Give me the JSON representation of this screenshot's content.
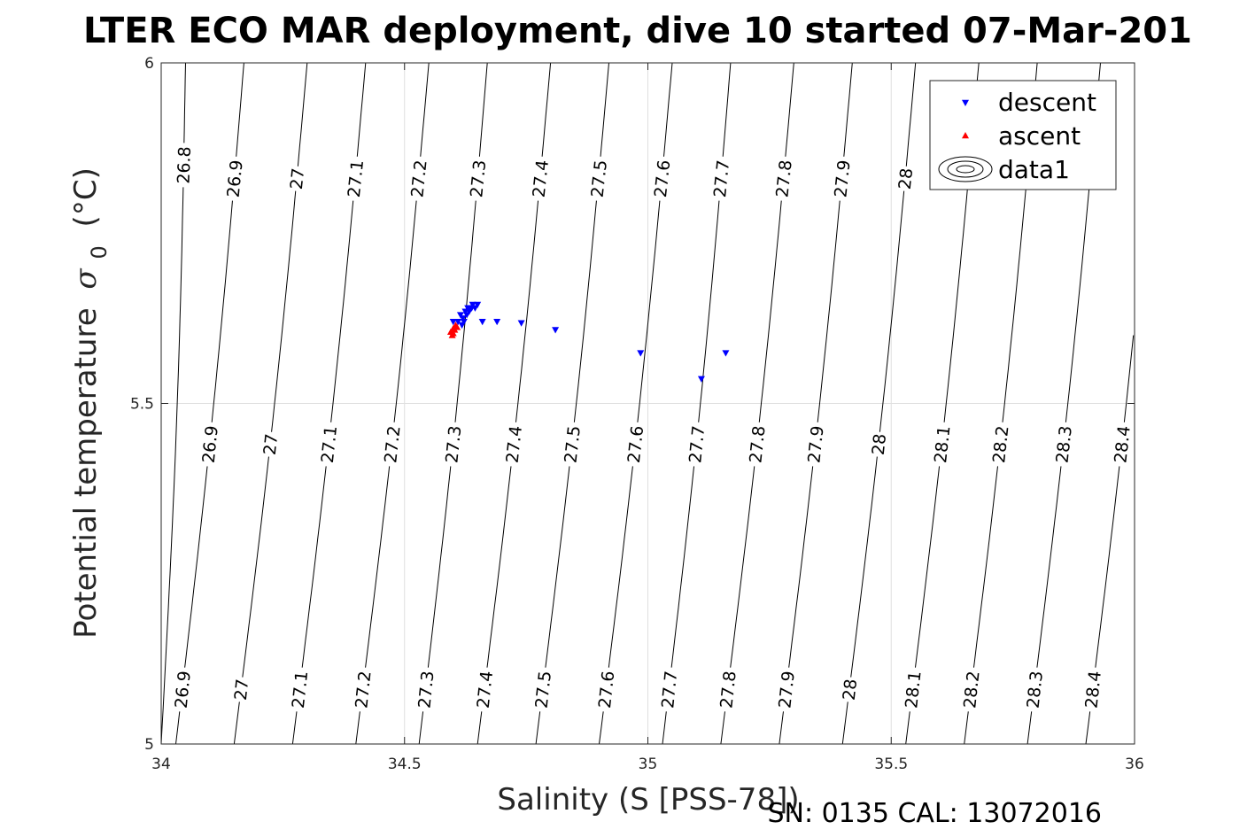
{
  "chart_data": {
    "type": "scatter",
    "title": "LTER ECO MAR deployment, dive 10 started 07-Mar-201",
    "xlabel": "Salinity (S [PSS-78])",
    "ylabel_main": "Potential temperature",
    "ylabel_symbol": "σ",
    "ylabel_subscript": "0",
    "ylabel_unit": "(°C)",
    "xlim": [
      34,
      36
    ],
    "ylim": [
      5,
      6
    ],
    "xticks": [
      "34",
      "34.5",
      "35",
      "35.5",
      "36"
    ],
    "yticks": [
      "5",
      "5.5",
      "6"
    ],
    "grid": true,
    "legend_position": "top-right",
    "legend": [
      "descent",
      "ascent",
      "data1"
    ],
    "footer": "SN: 0135  CAL: 13072016",
    "contours": [
      {
        "level": "26.8",
        "s_top": 34.05,
        "s_bot": 34.0
      },
      {
        "level": "26.9",
        "s_top": 34.17,
        "s_bot": 34.03
      },
      {
        "level": "27",
        "s_top": 34.3,
        "s_bot": 34.15
      },
      {
        "level": "27.1",
        "s_top": 34.42,
        "s_bot": 34.27
      },
      {
        "level": "27.2",
        "s_top": 34.55,
        "s_bot": 34.4
      },
      {
        "level": "27.3",
        "s_top": 34.67,
        "s_bot": 34.53
      },
      {
        "level": "27.4",
        "s_top": 34.8,
        "s_bot": 34.65
      },
      {
        "level": "27.5",
        "s_top": 34.92,
        "s_bot": 34.77
      },
      {
        "level": "27.6",
        "s_top": 35.05,
        "s_bot": 34.9
      },
      {
        "level": "27.7",
        "s_top": 35.17,
        "s_bot": 35.03
      },
      {
        "level": "27.8",
        "s_top": 35.3,
        "s_bot": 35.15
      },
      {
        "level": "27.9",
        "s_top": 35.42,
        "s_bot": 35.27
      },
      {
        "level": "28",
        "s_top": 35.55,
        "s_bot": 35.4
      },
      {
        "level": "28.1",
        "s_top": 35.68,
        "s_bot": 35.53
      },
      {
        "level": "28.2",
        "s_top": 35.8,
        "s_bot": 35.65
      },
      {
        "level": "28.3",
        "s_top": 35.93,
        "s_bot": 35.78
      },
      {
        "level": "28.4",
        "s_top": 36.05,
        "s_bot": 35.9
      }
    ],
    "contour_label_rows": [
      {
        "theta": 5.85,
        "levels": [
          "26.8"
        ]
      },
      {
        "theta": 5.83,
        "levels": [
          "26.9",
          "27",
          "27.1",
          "27.2",
          "27.3",
          "27.4",
          "27.5",
          "27.6",
          "27.7",
          "27.8",
          "27.9",
          "28"
        ]
      },
      {
        "theta": 5.44,
        "levels": [
          "26.9",
          "27",
          "27.1",
          "27.2",
          "27.3",
          "27.4",
          "27.5",
          "27.6",
          "27.7",
          "27.8",
          "27.9",
          "28",
          "28.1",
          "28.2",
          "28.3",
          "28.4"
        ]
      },
      {
        "theta": 5.08,
        "levels": [
          "26.9",
          "27",
          "27.1",
          "27.2",
          "27.3",
          "27.4",
          "27.5",
          "27.6",
          "27.7",
          "27.8",
          "27.9",
          "28",
          "28.1",
          "28.2",
          "28.3",
          "28.4"
        ]
      }
    ],
    "series": [
      {
        "name": "descent",
        "marker": "triangle-down",
        "color": "#0000ff",
        "points": [
          [
            34.6,
            5.62
          ],
          [
            34.61,
            5.62
          ],
          [
            34.615,
            5.63
          ],
          [
            34.62,
            5.625
          ],
          [
            34.625,
            5.635
          ],
          [
            34.63,
            5.64
          ],
          [
            34.635,
            5.64
          ],
          [
            34.64,
            5.645
          ],
          [
            34.645,
            5.64
          ],
          [
            34.65,
            5.645
          ],
          [
            34.618,
            5.615
          ],
          [
            34.622,
            5.62
          ],
          [
            34.628,
            5.63
          ],
          [
            34.633,
            5.635
          ],
          [
            34.638,
            5.64
          ],
          [
            34.66,
            5.62
          ],
          [
            34.69,
            5.62
          ],
          [
            34.74,
            5.618
          ],
          [
            34.81,
            5.608
          ],
          [
            34.985,
            5.574
          ],
          [
            35.11,
            5.536
          ],
          [
            35.16,
            5.574
          ]
        ]
      },
      {
        "name": "ascent",
        "marker": "triangle-up",
        "color": "#ff0000",
        "points": [
          [
            34.595,
            5.605
          ],
          [
            34.6,
            5.61
          ],
          [
            34.605,
            5.615
          ],
          [
            34.598,
            5.6
          ],
          [
            34.603,
            5.608
          ],
          [
            34.608,
            5.612
          ],
          [
            34.6,
            5.603
          ]
        ]
      }
    ]
  }
}
